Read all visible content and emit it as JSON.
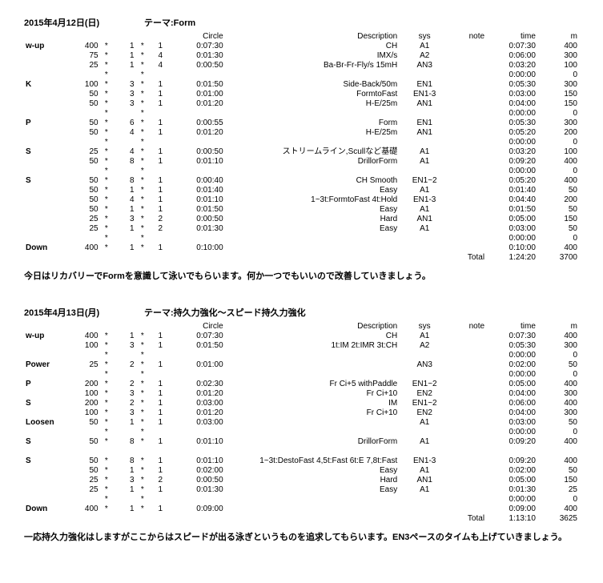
{
  "sessions": [
    {
      "date": "2015年4月12日(日)",
      "theme": "テーマ:Form",
      "cols": [
        "",
        "",
        "",
        "",
        "",
        "",
        "Circle",
        "Description",
        "sys",
        "note",
        "time",
        "m"
      ],
      "rows": [
        [
          "w-up",
          "400",
          "*",
          "1",
          "*",
          "1",
          "0:07:30",
          "CH",
          "A1",
          "",
          "0:07:30",
          "400"
        ],
        [
          "",
          "75",
          "*",
          "1",
          "*",
          "4",
          "0:01:30",
          "IMX/s",
          "A2",
          "",
          "0:06:00",
          "300"
        ],
        [
          "",
          "25",
          "*",
          "1",
          "*",
          "4",
          "0:00:50",
          "Ba-Br-Fr-Fly/s 15mH",
          "AN3",
          "",
          "0:03:20",
          "100"
        ],
        [
          "",
          "",
          "*",
          "",
          "*",
          "",
          "",
          "",
          "",
          "",
          "0:00:00",
          "0"
        ],
        [
          "K",
          "100",
          "*",
          "3",
          "*",
          "1",
          "0:01:50",
          "Side-Back/50m",
          "EN1",
          "",
          "0:05:30",
          "300"
        ],
        [
          "",
          "50",
          "*",
          "3",
          "*",
          "1",
          "0:01:00",
          "FormtoFast",
          "EN1-3",
          "",
          "0:03:00",
          "150"
        ],
        [
          "",
          "50",
          "*",
          "3",
          "*",
          "1",
          "0:01:20",
          "H-E/25m",
          "AN1",
          "",
          "0:04:00",
          "150"
        ],
        [
          "",
          "",
          "*",
          "",
          "*",
          "",
          "",
          "",
          "",
          "",
          "0:00:00",
          "0"
        ],
        [
          "P",
          "50",
          "*",
          "6",
          "*",
          "1",
          "0:00:55",
          "Form",
          "EN1",
          "",
          "0:05:30",
          "300"
        ],
        [
          "",
          "50",
          "*",
          "4",
          "*",
          "1",
          "0:01:20",
          "H-E/25m",
          "AN1",
          "",
          "0:05:20",
          "200"
        ],
        [
          "",
          "",
          "*",
          "",
          "*",
          "",
          "",
          "",
          "",
          "",
          "0:00:00",
          "0"
        ],
        [
          "S",
          "25",
          "*",
          "4",
          "*",
          "1",
          "0:00:50",
          "ストリームライン,Scullなど基礎",
          "A1",
          "",
          "0:03:20",
          "100"
        ],
        [
          "",
          "50",
          "*",
          "8",
          "*",
          "1",
          "0:01:10",
          "DrillorForm",
          "A1",
          "",
          "0:09:20",
          "400"
        ],
        [
          "",
          "",
          "*",
          "",
          "*",
          "",
          "",
          "",
          "",
          "",
          "0:00:00",
          "0"
        ],
        [
          "S",
          "50",
          "*",
          "8",
          "*",
          "1",
          "0:00:40",
          "CH Smooth",
          "EN1~2",
          "",
          "0:05:20",
          "400"
        ],
        [
          "",
          "50",
          "*",
          "1",
          "*",
          "1",
          "0:01:40",
          "Easy",
          "A1",
          "",
          "0:01:40",
          "50"
        ],
        [
          "",
          "50",
          "*",
          "4",
          "*",
          "1",
          "0:01:10",
          "1~3t:FormtoFast 4t:Hold",
          "EN1-3",
          "",
          "0:04:40",
          "200"
        ],
        [
          "",
          "50",
          "*",
          "1",
          "*",
          "1",
          "0:01:50",
          "Easy",
          "A1",
          "",
          "0:01:50",
          "50"
        ],
        [
          "",
          "25",
          "*",
          "3",
          "*",
          "2",
          "0:00:50",
          "Hard",
          "AN1",
          "",
          "0:05:00",
          "150"
        ],
        [
          "",
          "25",
          "*",
          "1",
          "*",
          "2",
          "0:01:30",
          "Easy",
          "A1",
          "",
          "0:03:00",
          "50"
        ],
        [
          "",
          "",
          "*",
          "",
          "*",
          "",
          "",
          "",
          "",
          "",
          "0:00:00",
          "0"
        ],
        [
          "Down",
          "400",
          "*",
          "1",
          "*",
          "1",
          "0:10:00",
          "",
          "",
          "",
          "0:10:00",
          "400"
        ]
      ],
      "total": [
        "",
        "",
        "",
        "",
        "",
        "",
        "",
        "",
        "",
        "Total",
        "1:24:20",
        "3700"
      ],
      "note": "今日はリカバリーでFormを意識して泳いでもらいます。何か一つでもいいので改善していきましょう。"
    },
    {
      "date": "2015年4月13日(月)",
      "theme": "テーマ:持久力強化～スピード持久力強化",
      "cols": [
        "",
        "",
        "",
        "",
        "",
        "",
        "Circle",
        "Description",
        "sys",
        "note",
        "time",
        "m"
      ],
      "rows": [
        [
          "w-up",
          "400",
          "*",
          "1",
          "*",
          "1",
          "0:07:30",
          "CH",
          "A1",
          "",
          "0:07:30",
          "400"
        ],
        [
          "",
          "100",
          "*",
          "3",
          "*",
          "1",
          "0:01:50",
          "1t:IM 2t:IMR 3t:CH",
          "A2",
          "",
          "0:05:30",
          "300"
        ],
        [
          "",
          "",
          "*",
          "",
          "*",
          "",
          "",
          "",
          "",
          "",
          "0:00:00",
          "0"
        ],
        [
          "Power",
          "25",
          "*",
          "2",
          "*",
          "1",
          "0:01:00",
          "",
          "AN3",
          "",
          "0:02:00",
          "50"
        ],
        [
          "",
          "",
          "*",
          "",
          "*",
          "",
          "",
          "",
          "",
          "",
          "0:00:00",
          "0"
        ],
        [
          "P",
          "200",
          "*",
          "2",
          "*",
          "1",
          "0:02:30",
          "Fr Ci+5 withPaddle",
          "EN1~2",
          "",
          "0:05:00",
          "400"
        ],
        [
          "",
          "100",
          "*",
          "3",
          "*",
          "1",
          "0:01:20",
          "Fr Ci+10",
          "EN2",
          "",
          "0:04:00",
          "300"
        ],
        [
          "S",
          "200",
          "*",
          "2",
          "*",
          "1",
          "0:03:00",
          "IM",
          "EN1~2",
          "",
          "0:06:00",
          "400"
        ],
        [
          "",
          "100",
          "*",
          "3",
          "*",
          "1",
          "0:01:20",
          "Fr Ci+10",
          "EN2",
          "",
          "0:04:00",
          "300"
        ],
        [
          "Loosen",
          "50",
          "*",
          "1",
          "*",
          "1",
          "0:03:00",
          "",
          "A1",
          "",
          "0:03:00",
          "50"
        ],
        [
          "",
          "",
          "*",
          "",
          "*",
          "",
          "",
          "",
          "",
          "",
          "0:00:00",
          "0"
        ],
        [
          "S",
          "50",
          "*",
          "8",
          "*",
          "1",
          "0:01:10",
          "DrillorForm",
          "A1",
          "",
          "0:09:20",
          "400"
        ],
        [
          "",
          "",
          "",
          "",
          "",
          "",
          "",
          "",
          "",
          "",
          "",
          ""
        ],
        [
          "S",
          "50",
          "*",
          "8",
          "*",
          "1",
          "0:01:10",
          "1~3t:DestoFast 4,5t:Fast 6t:E 7,8t:Fast",
          "EN1-3",
          "",
          "0:09:20",
          "400"
        ],
        [
          "",
          "50",
          "*",
          "1",
          "*",
          "1",
          "0:02:00",
          "Easy",
          "A1",
          "",
          "0:02:00",
          "50"
        ],
        [
          "",
          "25",
          "*",
          "3",
          "*",
          "2",
          "0:00:50",
          "Hard",
          "AN1",
          "",
          "0:05:00",
          "150"
        ],
        [
          "",
          "25",
          "*",
          "1",
          "*",
          "1",
          "0:01:30",
          "Easy",
          "A1",
          "",
          "0:01:30",
          "25"
        ],
        [
          "",
          "",
          "*",
          "",
          "*",
          "",
          "",
          "",
          "",
          "",
          "0:00:00",
          "0"
        ],
        [
          "Down",
          "400",
          "*",
          "1",
          "*",
          "1",
          "0:09:00",
          "",
          "",
          "",
          "0:09:00",
          "400"
        ]
      ],
      "total": [
        "",
        "",
        "",
        "",
        "",
        "",
        "",
        "",
        "",
        "Total",
        "1:13:10",
        "3625"
      ],
      "note": "一応持久力強化はしますがここからはスピードが出る泳ぎというものを追求してもらいます。EN3ペースのタイムも上げていきましょう。"
    }
  ]
}
